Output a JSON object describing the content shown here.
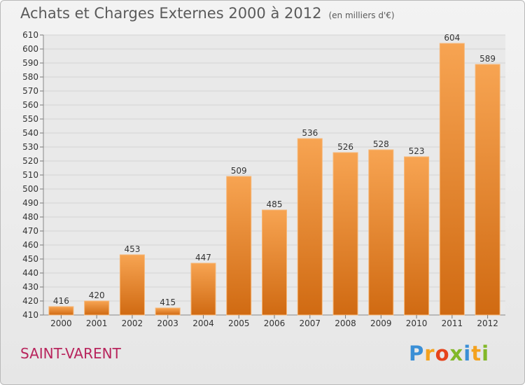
{
  "header": {
    "title": "Achats et Charges Externes 2000 à 2012",
    "subtitle": "(en milliers d'€)"
  },
  "footer": {
    "place": "SAINT-VARENT",
    "logo_letters": [
      "P",
      "r",
      "o",
      "x",
      "i",
      "t",
      "i"
    ],
    "logo_colors": [
      "#3a8fd6",
      "#f4a21e",
      "#e6431b",
      "#82b828",
      "#3a8fd6",
      "#f4a21e",
      "#82b828"
    ]
  },
  "chart_data": {
    "type": "bar",
    "title": "Achats et Charges Externes 2000 à 2012",
    "subtitle": "(en milliers d'€)",
    "categories": [
      "2000",
      "2001",
      "2002",
      "2003",
      "2004",
      "2005",
      "2006",
      "2007",
      "2008",
      "2009",
      "2010",
      "2011",
      "2012"
    ],
    "values": [
      416,
      420,
      453,
      415,
      447,
      509,
      485,
      536,
      526,
      528,
      523,
      604,
      589
    ],
    "ylim": [
      410,
      610
    ],
    "ytick_step": 10,
    "grid": true,
    "bar_color": "#f0922f"
  }
}
